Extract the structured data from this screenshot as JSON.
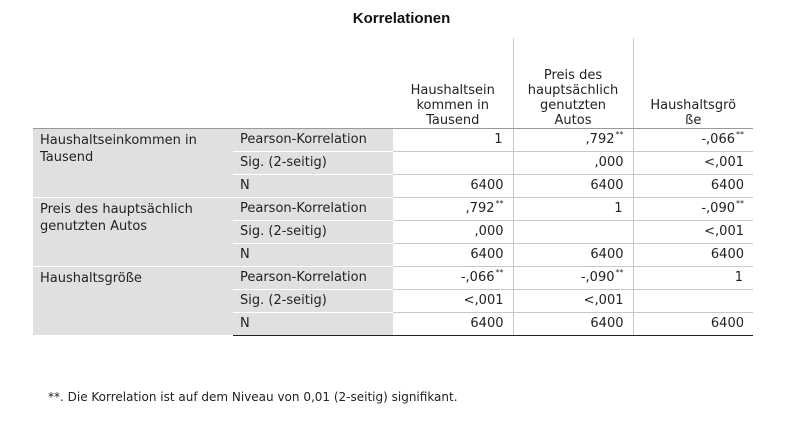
{
  "title": "Korrelationen",
  "columns": [
    {
      "line1": "Haushaltsein",
      "line2": "kommen in",
      "line3": "Tausend",
      "line4": ""
    },
    {
      "line1": "Preis des",
      "line2": "hauptsächlich",
      "line3": "genutzten",
      "line4": "Autos"
    },
    {
      "line1": "Haushaltsgrö",
      "line2": "ße",
      "line3": "",
      "line4": ""
    }
  ],
  "groups": [
    {
      "label_line1": "Haushaltseinkommen in",
      "label_line2": "Tausend",
      "rows": [
        {
          "stat": "Pearson-Korrelation",
          "v1": "1",
          "v1sig": "",
          "v2": ",792",
          "v2sig": "**",
          "v3": "-,066",
          "v3sig": "**"
        },
        {
          "stat": "Sig. (2-seitig)",
          "v1": "",
          "v1sig": "",
          "v2": ",000",
          "v2sig": "",
          "v3": "<,001",
          "v3sig": ""
        },
        {
          "stat": "N",
          "v1": "6400",
          "v1sig": "",
          "v2": "6400",
          "v2sig": "",
          "v3": "6400",
          "v3sig": ""
        }
      ]
    },
    {
      "label_line1": "Preis des hauptsächlich",
      "label_line2": "genutzten Autos",
      "rows": [
        {
          "stat": "Pearson-Korrelation",
          "v1": ",792",
          "v1sig": "**",
          "v2": "1",
          "v2sig": "",
          "v3": "-,090",
          "v3sig": "**"
        },
        {
          "stat": "Sig. (2-seitig)",
          "v1": ",000",
          "v1sig": "",
          "v2": "",
          "v2sig": "",
          "v3": "<,001",
          "v3sig": ""
        },
        {
          "stat": "N",
          "v1": "6400",
          "v1sig": "",
          "v2": "6400",
          "v2sig": "",
          "v3": "6400",
          "v3sig": ""
        }
      ]
    },
    {
      "label_line1": "Haushaltsgröße",
      "label_line2": "",
      "rows": [
        {
          "stat": "Pearson-Korrelation",
          "v1": "-,066",
          "v1sig": "**",
          "v2": "-,090",
          "v2sig": "**",
          "v3": "1",
          "v3sig": ""
        },
        {
          "stat": "Sig. (2-seitig)",
          "v1": "<,001",
          "v1sig": "",
          "v2": "<,001",
          "v2sig": "",
          "v3": "",
          "v3sig": ""
        },
        {
          "stat": "N",
          "v1": "6400",
          "v1sig": "",
          "v2": "6400",
          "v2sig": "",
          "v3": "6400",
          "v3sig": ""
        }
      ]
    }
  ],
  "footnote": "**. Die Korrelation ist auf dem Niveau von 0,01 (2-seitig) signifikant."
}
